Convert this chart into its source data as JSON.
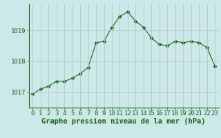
{
  "x": [
    0,
    1,
    2,
    3,
    4,
    5,
    6,
    7,
    8,
    9,
    10,
    11,
    12,
    13,
    14,
    15,
    16,
    17,
    18,
    19,
    20,
    21,
    22,
    23
  ],
  "y": [
    1016.95,
    1017.1,
    1017.2,
    1017.35,
    1017.35,
    1017.45,
    1017.6,
    1017.8,
    1018.6,
    1018.65,
    1019.1,
    1019.45,
    1019.6,
    1019.3,
    1019.1,
    1018.75,
    1018.55,
    1018.5,
    1018.65,
    1018.6,
    1018.65,
    1018.6,
    1018.45,
    1017.85
  ],
  "line_color": "#1a6318",
  "marker": "D",
  "marker_size": 2.5,
  "bg_color": "#cce8e8",
  "grid_color": "#b0c8c8",
  "xlabel": "Graphe pression niveau de la mer (hPa)",
  "xlabel_fontsize": 7.5,
  "tick_fontsize": 6.5,
  "yticks": [
    1017,
    1018,
    1019
  ],
  "ylim": [
    1016.5,
    1019.85
  ],
  "xlim": [
    -0.5,
    23.5
  ]
}
